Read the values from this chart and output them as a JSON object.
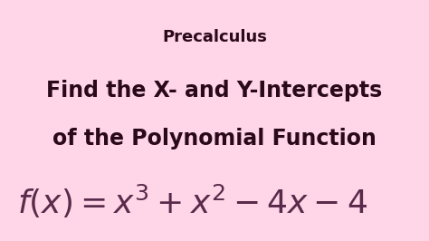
{
  "background_color": "#ffd6e8",
  "title": "Precalculus",
  "title_fontsize": 13,
  "title_color": "#2a0a1a",
  "subtitle_line1": "Find the X- and Y-Intercepts",
  "subtitle_line2": "of the Polynomial Function",
  "subtitle_fontsize": 17,
  "subtitle_color": "#2a0a1a",
  "formula": "$f(x) = x^3 + x^2 - 4x - 4$",
  "formula_fontsize": 26,
  "formula_color": "#5a2a4a",
  "fig_width": 4.74,
  "fig_height": 2.66,
  "dpi": 100
}
